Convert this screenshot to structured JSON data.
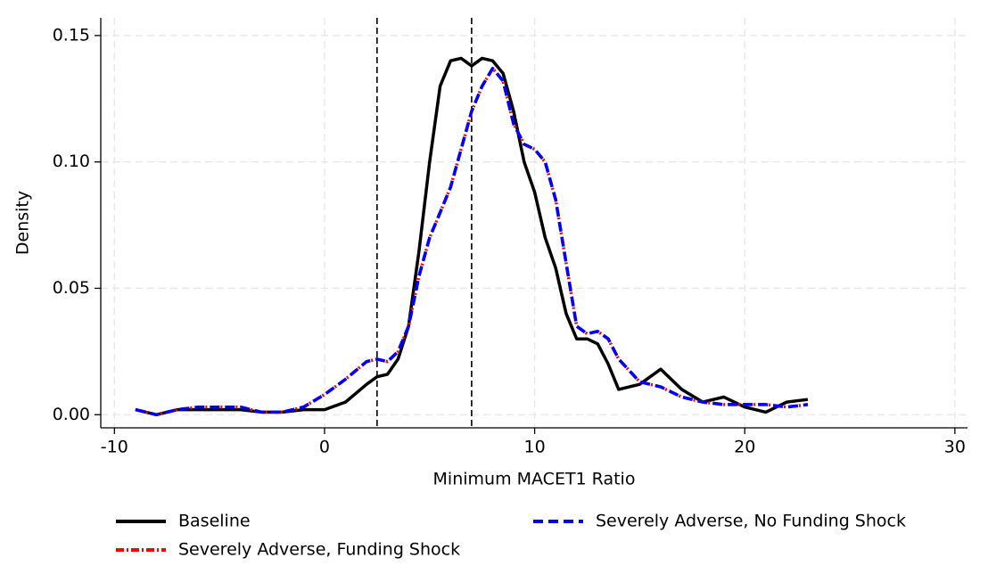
{
  "chart_data": {
    "type": "line",
    "x_label": "Minimum MACET1 Ratio",
    "y_label": "Density",
    "x": [
      -9,
      -8,
      -7,
      -6,
      -5,
      -4,
      -3,
      -2,
      -1,
      0,
      1,
      2,
      2.5,
      3,
      3.5,
      4,
      4.5,
      5,
      5.5,
      6,
      6.5,
      7,
      7.5,
      8,
      8.5,
      9,
      9.5,
      10,
      10.5,
      11,
      11.5,
      12,
      12.5,
      13,
      13.5,
      14,
      15,
      16,
      17,
      18,
      19,
      20,
      21,
      22,
      23
    ],
    "series": [
      {
        "name": "Baseline",
        "color": "#000000",
        "dash": "solid",
        "values": [
          0.002,
          0.0,
          0.002,
          0.002,
          0.002,
          0.002,
          0.001,
          0.001,
          0.002,
          0.002,
          0.005,
          0.012,
          0.015,
          0.016,
          0.022,
          0.035,
          0.065,
          0.1,
          0.13,
          0.14,
          0.141,
          0.138,
          0.141,
          0.14,
          0.135,
          0.12,
          0.1,
          0.088,
          0.07,
          0.058,
          0.04,
          0.03,
          0.03,
          0.028,
          0.02,
          0.01,
          0.012,
          0.018,
          0.01,
          0.005,
          0.007,
          0.003,
          0.001,
          0.005,
          0.006
        ]
      },
      {
        "name": "Severely Adverse, Funding Shock",
        "color": "#ff0000",
        "dash": "dash-dot",
        "values": [
          0.002,
          0.0,
          0.002,
          0.003,
          0.003,
          0.003,
          0.001,
          0.001,
          0.003,
          0.008,
          0.014,
          0.021,
          0.022,
          0.021,
          0.025,
          0.035,
          0.055,
          0.07,
          0.08,
          0.09,
          0.105,
          0.12,
          0.13,
          0.137,
          0.132,
          0.115,
          0.107,
          0.105,
          0.1,
          0.085,
          0.06,
          0.035,
          0.032,
          0.033,
          0.03,
          0.022,
          0.013,
          0.011,
          0.007,
          0.005,
          0.004,
          0.004,
          0.004,
          0.003,
          0.004
        ]
      },
      {
        "name": "Severely Adverse, No Funding Shock",
        "color": "#0000ff",
        "dash": "dash",
        "values": [
          0.002,
          0.0,
          0.002,
          0.003,
          0.003,
          0.003,
          0.001,
          0.001,
          0.003,
          0.008,
          0.014,
          0.021,
          0.022,
          0.021,
          0.025,
          0.035,
          0.055,
          0.07,
          0.08,
          0.09,
          0.105,
          0.12,
          0.13,
          0.137,
          0.132,
          0.115,
          0.107,
          0.105,
          0.1,
          0.085,
          0.06,
          0.035,
          0.032,
          0.033,
          0.03,
          0.022,
          0.013,
          0.011,
          0.007,
          0.005,
          0.004,
          0.004,
          0.004,
          0.003,
          0.004
        ]
      }
    ],
    "vlines": [
      2.5,
      7
    ],
    "xlim": [
      -10.65,
      30.6
    ],
    "ylim": [
      -0.0052,
      0.157
    ],
    "xticks": [
      -10,
      0,
      10,
      20,
      30
    ],
    "yticks": [
      {
        "value": 0,
        "label": "0.00"
      },
      {
        "value": 0.05,
        "label": "0.05"
      },
      {
        "value": 0.1,
        "label": "0.10"
      },
      {
        "value": 0.15,
        "label": "0.15"
      }
    ],
    "grid": true
  }
}
